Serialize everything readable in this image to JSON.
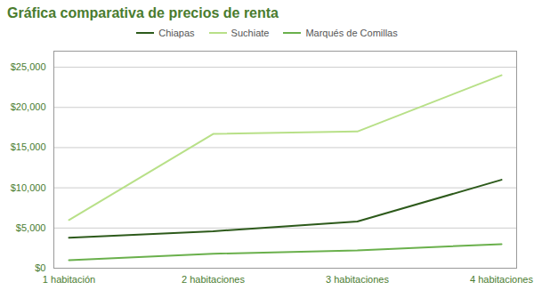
{
  "chart_data": {
    "type": "line",
    "title": "Gráfica comparativa de precios de renta",
    "categories": [
      "1 habitación",
      "2 habitaciones",
      "3 habitaciones",
      "4 habitaciones"
    ],
    "series": [
      {
        "name": "Chiapas",
        "color": "#2d5a1b",
        "values": [
          3800,
          4600,
          5800,
          11000
        ]
      },
      {
        "name": "Suchiate",
        "color": "#b8e088",
        "values": [
          6000,
          16700,
          17000,
          24000
        ]
      },
      {
        "name": "Marqués de Comillas",
        "color": "#6ab04c",
        "values": [
          1000,
          1800,
          2200,
          3000
        ]
      }
    ],
    "ylim": [
      0,
      27000
    ],
    "yticks": [
      {
        "value": 0,
        "label": "$0"
      },
      {
        "value": 5000,
        "label": "$5,000"
      },
      {
        "value": 10000,
        "label": "$10,000"
      },
      {
        "value": 15000,
        "label": "$15,000"
      },
      {
        "value": 20000,
        "label": "$20,000"
      },
      {
        "value": 25000,
        "label": "$25,000"
      }
    ],
    "grid": true,
    "legend": "top"
  }
}
